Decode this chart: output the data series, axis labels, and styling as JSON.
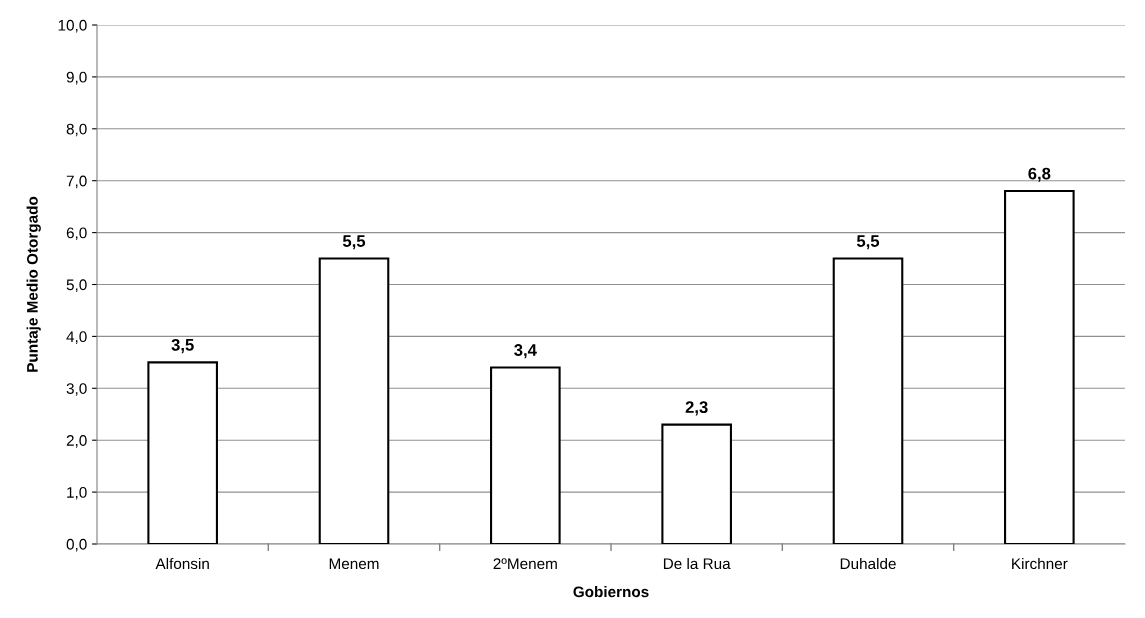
{
  "chart_data": {
    "type": "bar",
    "xlabel": "Gobiernos",
    "ylabel": "Puntaje Medio Otorgado",
    "categories": [
      "Alfonsin",
      "Menem",
      "2ºMenem",
      "De la Rua",
      "Duhalde",
      "Kirchner"
    ],
    "values": [
      3.5,
      5.5,
      3.4,
      2.3,
      5.5,
      6.8
    ],
    "value_labels": [
      "3,5",
      "5,5",
      "3,4",
      "2,3",
      "5,5",
      "6,8"
    ],
    "color": "#ffffff",
    "ylim": [
      0,
      10
    ],
    "yticks": [
      {
        "value": 0,
        "label": "0,0"
      },
      {
        "value": 1,
        "label": "1,0"
      },
      {
        "value": 2,
        "label": "2,0"
      },
      {
        "value": 3,
        "label": "3,0"
      },
      {
        "value": 4,
        "label": "4,0"
      },
      {
        "value": 5,
        "label": "5,0"
      },
      {
        "value": 6,
        "label": "6,0"
      },
      {
        "value": 7,
        "label": "7,0"
      },
      {
        "value": 8,
        "label": "8,0"
      },
      {
        "value": 9,
        "label": "9,0"
      },
      {
        "value": 10,
        "label": "10,0"
      }
    ],
    "grid": "y",
    "legend": false
  }
}
